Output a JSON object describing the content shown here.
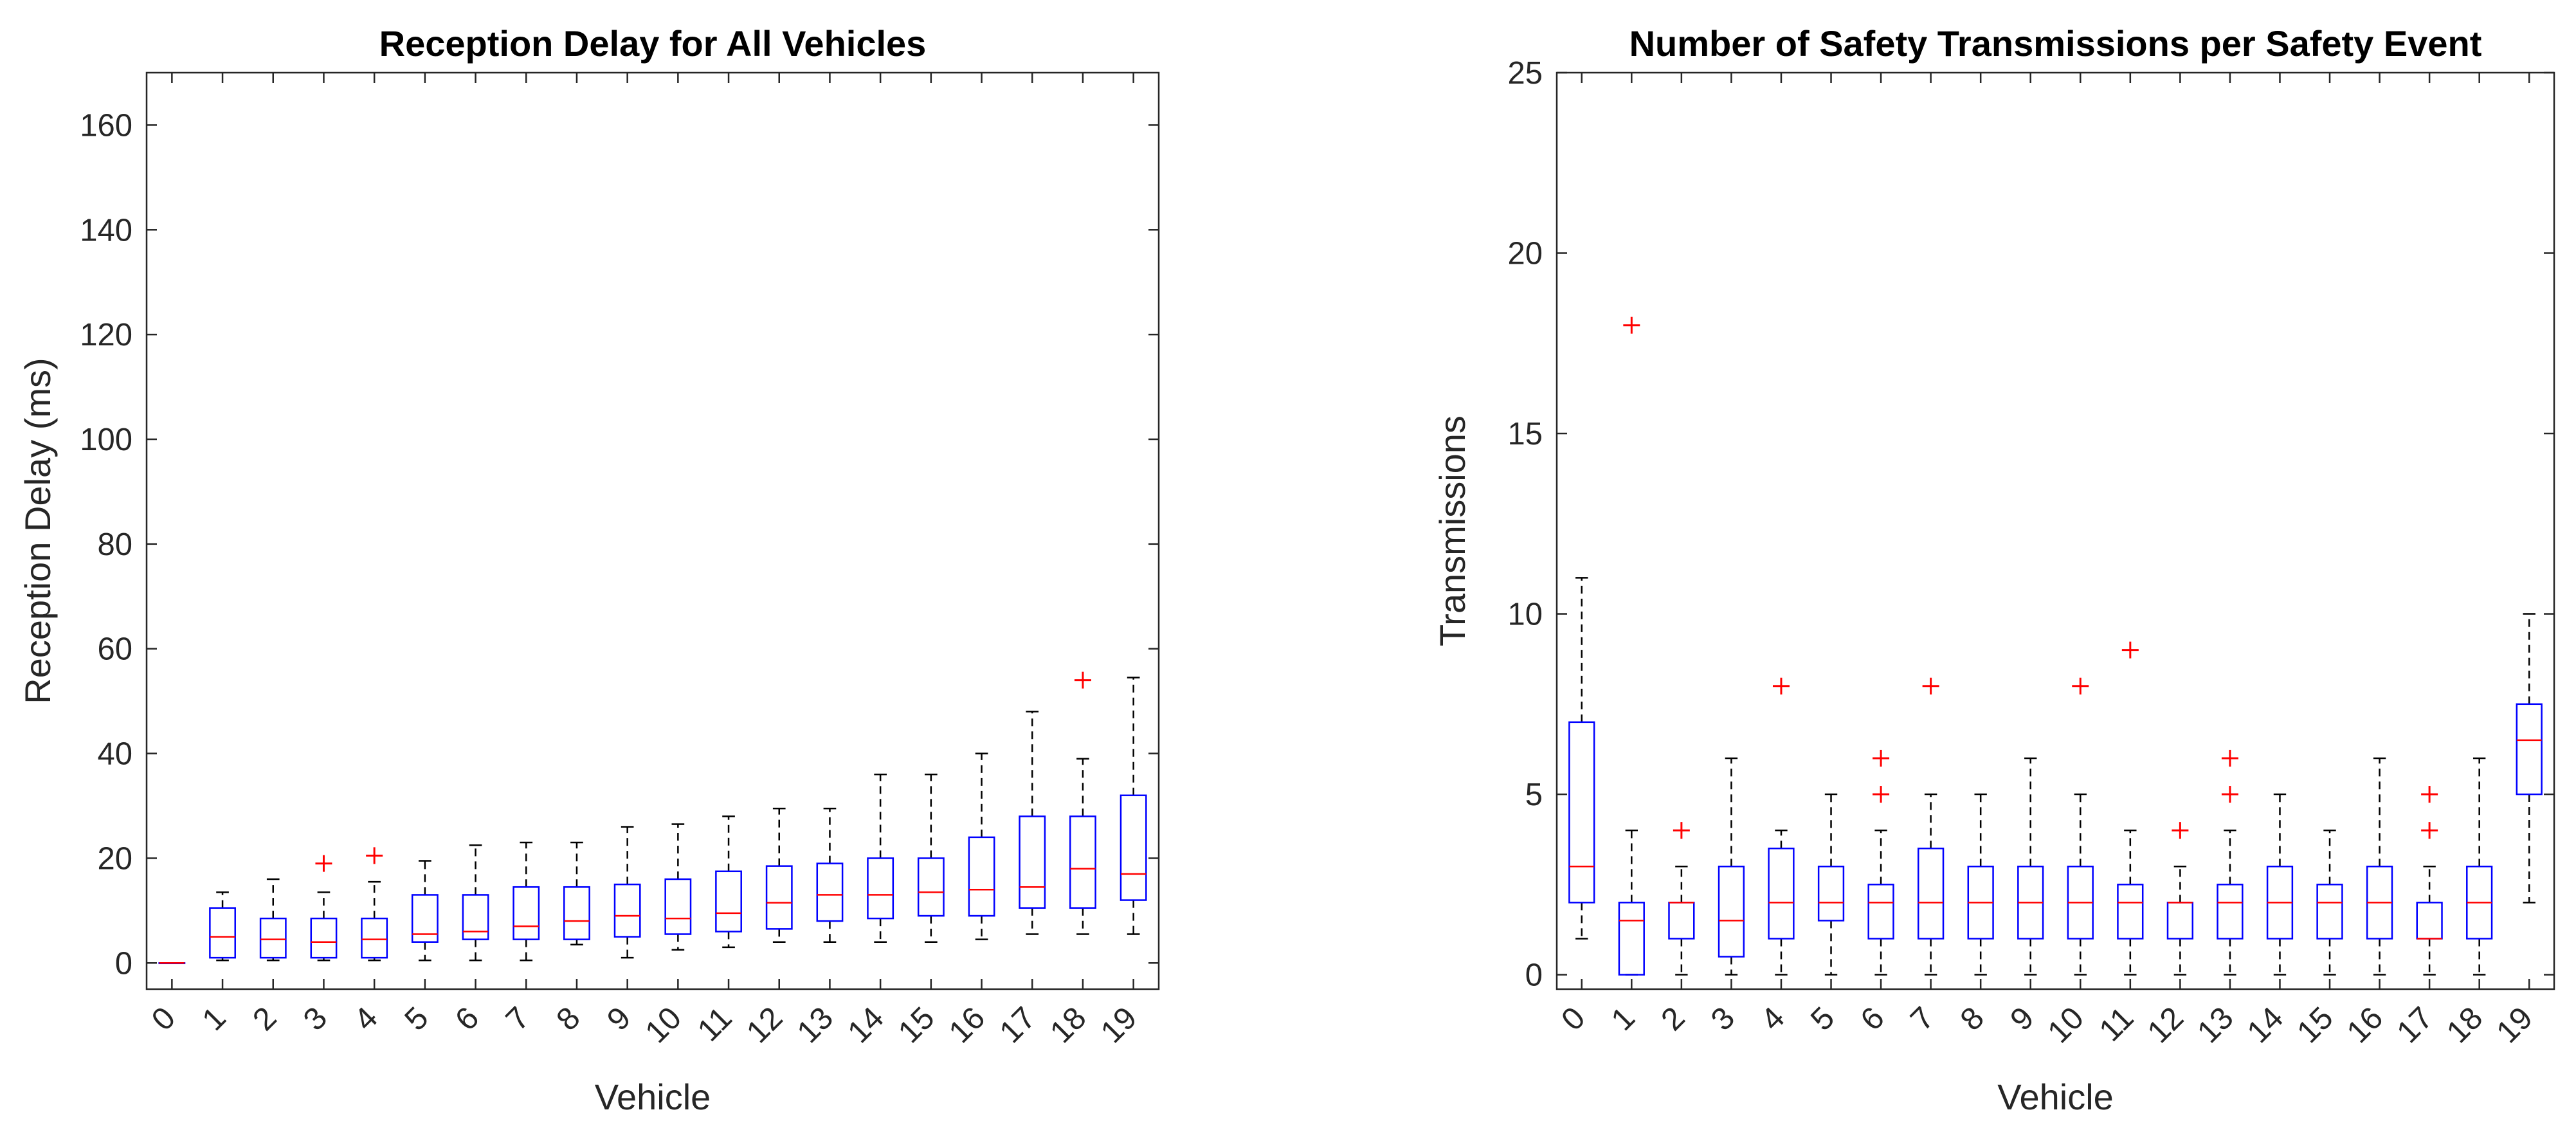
{
  "chart_data": [
    {
      "type": "boxplot",
      "title": "Reception Delay for All Vehicles",
      "xlabel": "Vehicle",
      "ylabel": "Reception Delay (ms)",
      "ylim": [
        -5,
        170
      ],
      "yticks": [
        0,
        20,
        40,
        60,
        80,
        100,
        120,
        140,
        160
      ],
      "categories": [
        "0",
        "1",
        "2",
        "3",
        "4",
        "5",
        "6",
        "7",
        "8",
        "9",
        "10",
        "11",
        "12",
        "13",
        "14",
        "15",
        "16",
        "17",
        "18",
        "19"
      ],
      "boxes": [
        {
          "min": 0,
          "q1": 0,
          "median": 0,
          "q3": 0,
          "max": 0,
          "outliers": []
        },
        {
          "min": 0.5,
          "q1": 1,
          "median": 5,
          "q3": 10.5,
          "max": 13.5,
          "outliers": []
        },
        {
          "min": 0.5,
          "q1": 1,
          "median": 4.5,
          "q3": 8.5,
          "max": 16,
          "outliers": []
        },
        {
          "min": 0.5,
          "q1": 1,
          "median": 4,
          "q3": 8.5,
          "max": 13.5,
          "outliers": [
            19
          ]
        },
        {
          "min": 0.5,
          "q1": 1,
          "median": 4.5,
          "q3": 8.5,
          "max": 15.5,
          "outliers": [
            20.5
          ]
        },
        {
          "min": 0.5,
          "q1": 4,
          "median": 5.5,
          "q3": 13,
          "max": 19.5,
          "outliers": []
        },
        {
          "min": 0.5,
          "q1": 4.5,
          "median": 6,
          "q3": 13,
          "max": 22.5,
          "outliers": []
        },
        {
          "min": 0.5,
          "q1": 4.5,
          "median": 7,
          "q3": 14.5,
          "max": 23,
          "outliers": []
        },
        {
          "min": 3.5,
          "q1": 4.5,
          "median": 8,
          "q3": 14.5,
          "max": 23,
          "outliers": []
        },
        {
          "min": 1,
          "q1": 5,
          "median": 9,
          "q3": 15,
          "max": 26,
          "outliers": []
        },
        {
          "min": 2.5,
          "q1": 5.5,
          "median": 8.5,
          "q3": 16,
          "max": 26.5,
          "outliers": []
        },
        {
          "min": 3,
          "q1": 6,
          "median": 9.5,
          "q3": 17.5,
          "max": 28,
          "outliers": []
        },
        {
          "min": 4,
          "q1": 6.5,
          "median": 11.5,
          "q3": 18.5,
          "max": 29.5,
          "outliers": []
        },
        {
          "min": 4,
          "q1": 8,
          "median": 13,
          "q3": 19,
          "max": 29.5,
          "outliers": []
        },
        {
          "min": 4,
          "q1": 8.5,
          "median": 13,
          "q3": 20,
          "max": 36,
          "outliers": []
        },
        {
          "min": 4,
          "q1": 9,
          "median": 13.5,
          "q3": 20,
          "max": 36,
          "outliers": []
        },
        {
          "min": 4.5,
          "q1": 9,
          "median": 14,
          "q3": 24,
          "max": 40,
          "outliers": []
        },
        {
          "min": 5.5,
          "q1": 10.5,
          "median": 14.5,
          "q3": 28,
          "max": 48,
          "outliers": []
        },
        {
          "min": 5.5,
          "q1": 10.5,
          "median": 18,
          "q3": 28,
          "max": 39,
          "outliers": [
            54
          ]
        },
        {
          "min": 5.5,
          "q1": 12,
          "median": 17,
          "q3": 32,
          "max": 54.5,
          "outliers": []
        }
      ]
    },
    {
      "type": "boxplot",
      "title": "Number of Safety Transmissions per Safety Event",
      "xlabel": "Vehicle",
      "ylabel": "Transmissions",
      "ylim": [
        -0.4,
        25
      ],
      "yticks": [
        0,
        5,
        10,
        15,
        20,
        25
      ],
      "categories": [
        "0",
        "1",
        "2",
        "3",
        "4",
        "5",
        "6",
        "7",
        "8",
        "9",
        "10",
        "11",
        "12",
        "13",
        "14",
        "15",
        "16",
        "17",
        "18",
        "19"
      ],
      "boxes": [
        {
          "min": 1,
          "q1": 2,
          "median": 3,
          "q3": 7,
          "max": 11,
          "outliers": []
        },
        {
          "min": 0,
          "q1": 0,
          "median": 1.5,
          "q3": 2,
          "max": 4,
          "outliers": [
            18
          ]
        },
        {
          "min": 0,
          "q1": 1,
          "median": 2,
          "q3": 2,
          "max": 3,
          "outliers": [
            4
          ]
        },
        {
          "min": 0,
          "q1": 0.5,
          "median": 1.5,
          "q3": 3,
          "max": 6,
          "outliers": []
        },
        {
          "min": 0,
          "q1": 1,
          "median": 2,
          "q3": 3.5,
          "max": 4,
          "outliers": [
            8
          ]
        },
        {
          "min": 0,
          "q1": 1.5,
          "median": 2,
          "q3": 3,
          "max": 5,
          "outliers": []
        },
        {
          "min": 0,
          "q1": 1,
          "median": 2,
          "q3": 2.5,
          "max": 4,
          "outliers": [
            5,
            6
          ]
        },
        {
          "min": 0,
          "q1": 1,
          "median": 2,
          "q3": 3.5,
          "max": 5,
          "outliers": [
            8
          ]
        },
        {
          "min": 0,
          "q1": 1,
          "median": 2,
          "q3": 3,
          "max": 5,
          "outliers": []
        },
        {
          "min": 0,
          "q1": 1,
          "median": 2,
          "q3": 3,
          "max": 6,
          "outliers": []
        },
        {
          "min": 0,
          "q1": 1,
          "median": 2,
          "q3": 3,
          "max": 5,
          "outliers": [
            8
          ]
        },
        {
          "min": 0,
          "q1": 1,
          "median": 2,
          "q3": 2.5,
          "max": 4,
          "outliers": [
            9
          ]
        },
        {
          "min": 0,
          "q1": 1,
          "median": 2,
          "q3": 2,
          "max": 3,
          "outliers": [
            4
          ]
        },
        {
          "min": 0,
          "q1": 1,
          "median": 2,
          "q3": 2.5,
          "max": 4,
          "outliers": [
            5,
            6
          ]
        },
        {
          "min": 0,
          "q1": 1,
          "median": 2,
          "q3": 3,
          "max": 5,
          "outliers": []
        },
        {
          "min": 0,
          "q1": 1,
          "median": 2,
          "q3": 2.5,
          "max": 4,
          "outliers": []
        },
        {
          "min": 0,
          "q1": 1,
          "median": 2,
          "q3": 3,
          "max": 6,
          "outliers": []
        },
        {
          "min": 0,
          "q1": 1,
          "median": 1,
          "q3": 2,
          "max": 3,
          "outliers": [
            4,
            5
          ]
        },
        {
          "min": 0,
          "q1": 1,
          "median": 2,
          "q3": 3,
          "max": 6,
          "outliers": []
        },
        {
          "min": 2,
          "q1": 5,
          "median": 6.5,
          "q3": 7.5,
          "max": 10,
          "outliers": []
        }
      ]
    }
  ],
  "colors": {
    "box": "#0000ff",
    "median": "#ff0000",
    "outlier": "#ff0000",
    "whisker": "#000000",
    "axis": "#262626"
  }
}
